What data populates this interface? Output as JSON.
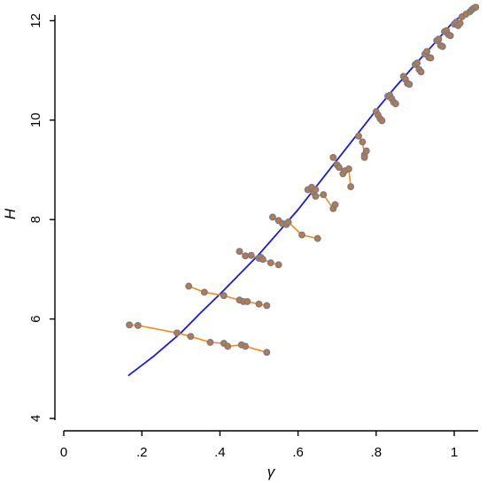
{
  "chart_data": {
    "type": "scatter",
    "title": "",
    "xlabel": "γ",
    "ylabel": "H",
    "xlim": [
      0,
      1.06
    ],
    "ylim": [
      4,
      12.4
    ],
    "grid": false,
    "legend": "none",
    "x_ticks": [
      {
        "value": 0,
        "label": "0"
      },
      {
        "value": 0.2,
        "label": ".2"
      },
      {
        "value": 0.4,
        "label": ".4"
      },
      {
        "value": 0.6,
        "label": ".6"
      },
      {
        "value": 0.8,
        "label": ".8"
      },
      {
        "value": 1,
        "label": "1"
      }
    ],
    "y_ticks": [
      {
        "value": 4,
        "label": "4"
      },
      {
        "value": 6,
        "label": "6"
      },
      {
        "value": 8,
        "label": "8"
      },
      {
        "value": 10,
        "label": "10"
      },
      {
        "value": 12,
        "label": "12"
      }
    ],
    "colors": {
      "fit_line": "#1a1adc",
      "segments": "#f08a1e",
      "marker_fill": "#c07a3a",
      "marker_edge": "#7a7a8e"
    },
    "fit_line": {
      "x": [
        0.165,
        0.23,
        0.3,
        0.35,
        0.4,
        0.45,
        0.5,
        0.55,
        0.6,
        0.65,
        0.7,
        0.75,
        0.8,
        0.85,
        0.9,
        0.95,
        1.0,
        1.03,
        1.06
      ],
      "y": [
        4.86,
        5.25,
        5.72,
        6.12,
        6.5,
        6.9,
        7.3,
        7.75,
        8.2,
        8.7,
        9.2,
        9.7,
        10.2,
        10.67,
        11.12,
        11.55,
        12.0,
        12.15,
        12.25
      ]
    },
    "segments": [
      {
        "points": [
          [
            0.168,
            5.88
          ],
          [
            0.19,
            5.87
          ],
          [
            0.29,
            5.72
          ],
          [
            0.325,
            5.65
          ],
          [
            0.375,
            5.53
          ],
          [
            0.41,
            5.51
          ],
          [
            0.42,
            5.45
          ],
          [
            0.455,
            5.48
          ],
          [
            0.465,
            5.45
          ],
          [
            0.52,
            5.33
          ]
        ]
      },
      {
        "points": [
          [
            0.32,
            6.66
          ],
          [
            0.36,
            6.54
          ],
          [
            0.41,
            6.47
          ],
          [
            0.45,
            6.38
          ],
          [
            0.46,
            6.35
          ],
          [
            0.47,
            6.35
          ],
          [
            0.5,
            6.3
          ],
          [
            0.52,
            6.27
          ]
        ]
      },
      {
        "points": [
          [
            0.45,
            7.36
          ],
          [
            0.465,
            7.27
          ],
          [
            0.48,
            7.28
          ],
          [
            0.5,
            7.22
          ],
          [
            0.505,
            7.24
          ],
          [
            0.51,
            7.2
          ],
          [
            0.53,
            7.13
          ],
          [
            0.55,
            7.09
          ]
        ]
      },
      {
        "points": [
          [
            0.535,
            8.05
          ],
          [
            0.55,
            7.98
          ],
          [
            0.56,
            7.92
          ],
          [
            0.57,
            7.9
          ],
          [
            0.575,
            7.95
          ],
          [
            0.61,
            7.69
          ],
          [
            0.65,
            7.62
          ]
        ]
      },
      {
        "points": [
          [
            0.625,
            8.6
          ],
          [
            0.635,
            8.65
          ],
          [
            0.64,
            8.55
          ],
          [
            0.645,
            8.6
          ],
          [
            0.645,
            8.47
          ],
          [
            0.665,
            8.5
          ],
          [
            0.69,
            8.22
          ],
          [
            0.695,
            8.3
          ]
        ]
      },
      {
        "points": [
          [
            0.69,
            9.25
          ],
          [
            0.7,
            9.1
          ],
          [
            0.705,
            9.05
          ],
          [
            0.715,
            8.92
          ],
          [
            0.72,
            8.98
          ],
          [
            0.73,
            9.02
          ],
          [
            0.735,
            8.66
          ]
        ]
      },
      {
        "points": [
          [
            0.755,
            9.68
          ],
          [
            0.765,
            9.56
          ],
          [
            0.77,
            9.3
          ],
          [
            0.775,
            9.38
          ],
          [
            0.77,
            9.25
          ]
        ]
      },
      {
        "points": [
          [
            0.8,
            10.17
          ],
          [
            0.805,
            10.1
          ],
          [
            0.81,
            10.03
          ],
          [
            0.815,
            9.99
          ]
        ]
      },
      {
        "points": [
          [
            0.83,
            10.48
          ],
          [
            0.835,
            10.5
          ],
          [
            0.84,
            10.43
          ],
          [
            0.845,
            10.36
          ],
          [
            0.85,
            10.33
          ]
        ]
      },
      {
        "points": [
          [
            0.87,
            10.88
          ],
          [
            0.875,
            10.82
          ],
          [
            0.88,
            10.74
          ],
          [
            0.885,
            10.72
          ]
        ]
      },
      {
        "points": [
          [
            0.9,
            11.12
          ],
          [
            0.905,
            11.15
          ],
          [
            0.91,
            11.02
          ],
          [
            0.915,
            10.97
          ]
        ]
      },
      {
        "points": [
          [
            0.925,
            11.33
          ],
          [
            0.93,
            11.38
          ],
          [
            0.935,
            11.26
          ],
          [
            0.94,
            11.25
          ]
        ]
      },
      {
        "points": [
          [
            0.955,
            11.6
          ],
          [
            0.96,
            11.63
          ],
          [
            0.965,
            11.5
          ],
          [
            0.97,
            11.48
          ]
        ]
      },
      {
        "points": [
          [
            0.975,
            11.78
          ],
          [
            0.98,
            11.8
          ],
          [
            0.985,
            11.72
          ],
          [
            0.99,
            11.7
          ]
        ]
      },
      {
        "points": [
          [
            1.0,
            11.93
          ],
          [
            1.005,
            11.97
          ],
          [
            1.01,
            11.9
          ],
          [
            1.015,
            11.95
          ]
        ]
      },
      {
        "points": [
          [
            1.02,
            12.08
          ],
          [
            1.03,
            12.13
          ],
          [
            1.04,
            12.18
          ],
          [
            1.045,
            12.22
          ],
          [
            1.05,
            12.25
          ],
          [
            1.055,
            12.27
          ]
        ]
      }
    ]
  }
}
